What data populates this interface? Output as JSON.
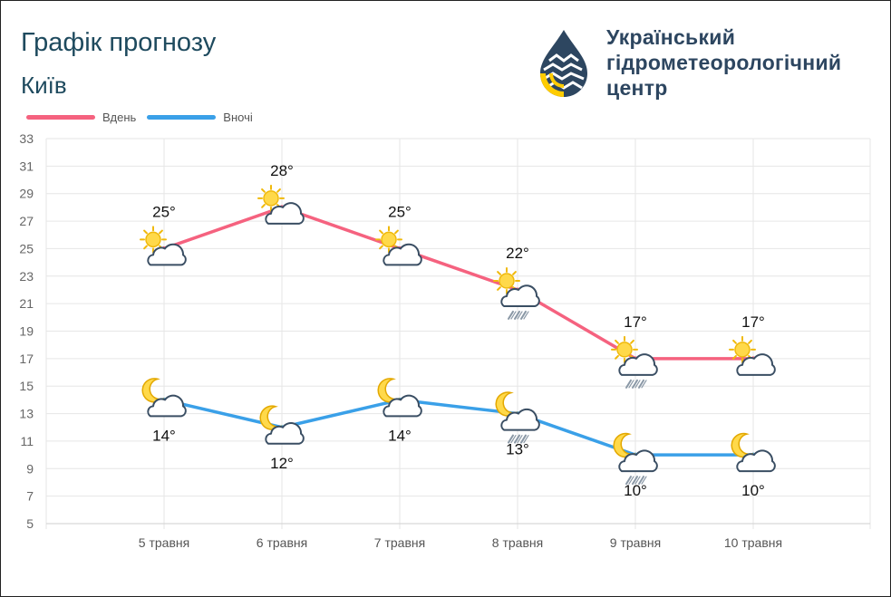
{
  "header": {
    "title": "Графік прогнозу",
    "city": "Київ",
    "org_line1": "Український",
    "org_line2": "гідрометеорологічний",
    "org_line3": "центр"
  },
  "colors": {
    "day": "#f5627f",
    "night": "#3aa0e8",
    "text_dark": "#1e4a5e",
    "grid": "#e6e6e6",
    "sun": "#ffd94a",
    "cloud_stroke": "#3a4e63"
  },
  "chart_data": {
    "type": "line",
    "x": [
      "5 травня",
      "6 травня",
      "7 травня",
      "8 травня",
      "9 травня",
      "10 травня"
    ],
    "ylim": [
      5,
      33
    ],
    "yticks": [
      5,
      7,
      9,
      11,
      13,
      15,
      17,
      19,
      21,
      23,
      25,
      27,
      29,
      31,
      33
    ],
    "grid": true,
    "legend": "top-left",
    "series": [
      {
        "name": "Вдень",
        "values": [
          25,
          28,
          25,
          22,
          17,
          17
        ],
        "labels": [
          "25°",
          "28°",
          "25°",
          "22°",
          "17°",
          "17°"
        ],
        "icons": [
          "sun-cloud-icon",
          "sun-cloud-icon",
          "sun-cloud-icon",
          "sun-cloud-rain-icon",
          "sun-cloud-rain-icon",
          "sun-cloud-icon"
        ]
      },
      {
        "name": "Вночі",
        "values": [
          14,
          12,
          14,
          13,
          10,
          10
        ],
        "labels": [
          "14°",
          "12°",
          "14°",
          "13°",
          "10°",
          "10°"
        ],
        "icons": [
          "moon-cloud-icon",
          "moon-cloud-icon",
          "moon-cloud-icon",
          "moon-cloud-rain-icon",
          "moon-cloud-rain-icon",
          "moon-cloud-icon"
        ]
      }
    ]
  }
}
